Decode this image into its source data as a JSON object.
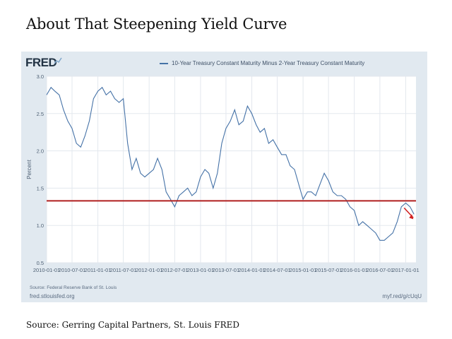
{
  "headline": "About That Steepening Yield Curve",
  "fred": {
    "logo": "FRED",
    "legend": "10-Year Treasury Constant Maturity Minus 2-Year Treasury Constant Maturity",
    "source_note": "Source: Federal Reserve Bank of St. Louis",
    "site": "fred.stlouisfed.org",
    "short_url": "myf.red/g/cUqU"
  },
  "caption": "Source: Gerring Capital Partners, St. Louis FRED",
  "colors": {
    "series": "#4572a7",
    "reference_line": "#b01f1f",
    "arrow": "#d22222",
    "panel": "#e1e9f0",
    "plot": "#ffffff"
  },
  "chart_data": {
    "type": "line",
    "title": "",
    "xlabel": "",
    "ylabel": "Percent",
    "ylim": [
      0.5,
      3.0
    ],
    "xlim": [
      "2010-01-01",
      "2017-03-15"
    ],
    "yticks": [
      "0.5",
      "1.0",
      "1.5",
      "2.0",
      "2.5",
      "3.0"
    ],
    "xticks": [
      "2010-01-01",
      "2010-07-01",
      "2011-01-01",
      "2011-07-01",
      "2012-01-01",
      "2012-07-01",
      "2013-01-01",
      "2013-07-01",
      "2014-01-01",
      "2014-07-01",
      "2015-01-01",
      "2015-07-01",
      "2016-01-01",
      "2016-07-01",
      "2017-01-01"
    ],
    "grid": true,
    "legend_position": "top",
    "series": [
      {
        "name": "10-Year Treasury Constant Maturity Minus 2-Year Treasury Constant Maturity",
        "points": [
          [
            "2010-01-01",
            2.75
          ],
          [
            "2010-02-01",
            2.85
          ],
          [
            "2010-03-01",
            2.8
          ],
          [
            "2010-04-01",
            2.75
          ],
          [
            "2010-05-01",
            2.55
          ],
          [
            "2010-06-01",
            2.4
          ],
          [
            "2010-07-01",
            2.3
          ],
          [
            "2010-08-01",
            2.1
          ],
          [
            "2010-09-01",
            2.05
          ],
          [
            "2010-10-01",
            2.2
          ],
          [
            "2010-11-01",
            2.4
          ],
          [
            "2010-12-01",
            2.7
          ],
          [
            "2011-01-01",
            2.8
          ],
          [
            "2011-02-01",
            2.85
          ],
          [
            "2011-03-01",
            2.75
          ],
          [
            "2011-04-01",
            2.8
          ],
          [
            "2011-05-01",
            2.7
          ],
          [
            "2011-06-01",
            2.65
          ],
          [
            "2011-07-01",
            2.7
          ],
          [
            "2011-08-01",
            2.1
          ],
          [
            "2011-09-01",
            1.75
          ],
          [
            "2011-10-01",
            1.9
          ],
          [
            "2011-11-01",
            1.7
          ],
          [
            "2011-12-01",
            1.65
          ],
          [
            "2012-01-01",
            1.7
          ],
          [
            "2012-02-01",
            1.75
          ],
          [
            "2012-03-01",
            1.9
          ],
          [
            "2012-04-01",
            1.75
          ],
          [
            "2012-05-01",
            1.45
          ],
          [
            "2012-06-01",
            1.35
          ],
          [
            "2012-07-01",
            1.25
          ],
          [
            "2012-08-01",
            1.4
          ],
          [
            "2012-09-01",
            1.45
          ],
          [
            "2012-10-01",
            1.5
          ],
          [
            "2012-11-01",
            1.4
          ],
          [
            "2012-12-01",
            1.45
          ],
          [
            "2013-01-01",
            1.65
          ],
          [
            "2013-02-01",
            1.75
          ],
          [
            "2013-03-01",
            1.7
          ],
          [
            "2013-04-01",
            1.5
          ],
          [
            "2013-05-01",
            1.7
          ],
          [
            "2013-06-01",
            2.1
          ],
          [
            "2013-07-01",
            2.3
          ],
          [
            "2013-08-01",
            2.4
          ],
          [
            "2013-09-01",
            2.55
          ],
          [
            "2013-10-01",
            2.35
          ],
          [
            "2013-11-01",
            2.4
          ],
          [
            "2013-12-01",
            2.6
          ],
          [
            "2014-01-01",
            2.5
          ],
          [
            "2014-02-01",
            2.35
          ],
          [
            "2014-03-01",
            2.25
          ],
          [
            "2014-04-01",
            2.3
          ],
          [
            "2014-05-01",
            2.1
          ],
          [
            "2014-06-01",
            2.15
          ],
          [
            "2014-07-01",
            2.05
          ],
          [
            "2014-08-01",
            1.95
          ],
          [
            "2014-09-01",
            1.95
          ],
          [
            "2014-10-01",
            1.8
          ],
          [
            "2014-11-01",
            1.75
          ],
          [
            "2014-12-01",
            1.55
          ],
          [
            "2015-01-01",
            1.35
          ],
          [
            "2015-02-01",
            1.45
          ],
          [
            "2015-03-01",
            1.45
          ],
          [
            "2015-04-01",
            1.4
          ],
          [
            "2015-05-01",
            1.55
          ],
          [
            "2015-06-01",
            1.7
          ],
          [
            "2015-07-01",
            1.6
          ],
          [
            "2015-08-01",
            1.45
          ],
          [
            "2015-09-01",
            1.4
          ],
          [
            "2015-10-01",
            1.4
          ],
          [
            "2015-11-01",
            1.35
          ],
          [
            "2015-12-01",
            1.25
          ],
          [
            "2016-01-01",
            1.2
          ],
          [
            "2016-02-01",
            1.0
          ],
          [
            "2016-03-01",
            1.05
          ],
          [
            "2016-04-01",
            1.0
          ],
          [
            "2016-05-01",
            0.95
          ],
          [
            "2016-06-01",
            0.9
          ],
          [
            "2016-07-01",
            0.8
          ],
          [
            "2016-08-01",
            0.8
          ],
          [
            "2016-09-01",
            0.85
          ],
          [
            "2016-10-01",
            0.9
          ],
          [
            "2016-11-01",
            1.05
          ],
          [
            "2016-12-01",
            1.25
          ],
          [
            "2017-01-01",
            1.3
          ],
          [
            "2017-02-01",
            1.25
          ],
          [
            "2017-03-01",
            1.15
          ]
        ]
      }
    ],
    "reference_line": {
      "y": 1.33
    }
  }
}
